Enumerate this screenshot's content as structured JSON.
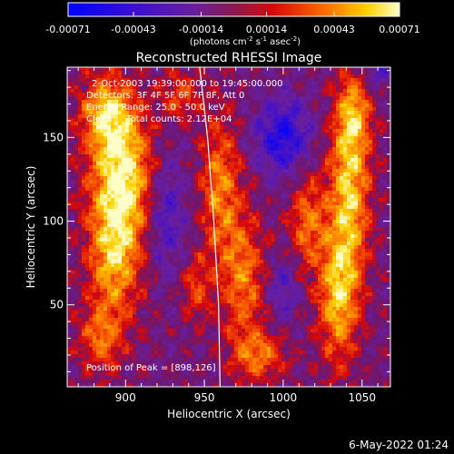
{
  "chart_data": {
    "type": "heatmap",
    "title": "Reconstructed RHESSI Image",
    "xlabel": "Heliocentric X (arcsec)",
    "ylabel": "Heliocentric Y (arcsec)",
    "xlim": [
      863,
      1068
    ],
    "ylim": [
      1,
      192
    ],
    "x_ticks": [
      900,
      950,
      1000,
      1050
    ],
    "y_ticks": [
      50,
      100,
      150
    ],
    "colorbar": {
      "range": [
        -0.00071,
        0.00071
      ],
      "tick_values": [
        -0.00071,
        -0.00043,
        -0.00014,
        0.00014,
        0.00043,
        0.00071
      ],
      "tick_labels": [
        "-0.00071",
        "-0.00043",
        "-0.00014",
        "0.00014",
        "0.00043",
        "0.00071"
      ],
      "unit_label_prefix": "(photons cm",
      "unit_label_sup1": "-2",
      "unit_label_mid": " s",
      "unit_label_sup2": "-1",
      "unit_label_mid2": " asec",
      "unit_label_sup3": "-2",
      "unit_label_suffix": ")"
    },
    "annotations": {
      "time_range": "2-Oct-2003 19:39:00.000 to 19:45:00.000",
      "detectors": "Detectors: 3F 4F 5F 6F 7F 8F, Att 0",
      "energy_range": "Energy Range: 25.0 - 50.0 keV",
      "method": "Clean     Total counts: 2.12E+04",
      "peak_position": "Position of Peak = [898,126]"
    },
    "limb_curve": [
      [
        947,
        192
      ],
      [
        952,
        150
      ],
      [
        956,
        100
      ],
      [
        959,
        50
      ],
      [
        960,
        1
      ]
    ],
    "emission_regions": [
      {
        "x": 898,
        "y": 126,
        "sx": 14,
        "sy": 26,
        "amp": 1.0
      },
      {
        "x": 888,
        "y": 165,
        "sx": 12,
        "sy": 16,
        "amp": 0.75
      },
      {
        "x": 893,
        "y": 78,
        "sx": 12,
        "sy": 24,
        "amp": 0.75
      },
      {
        "x": 885,
        "y": 30,
        "sx": 10,
        "sy": 14,
        "amp": 0.55
      },
      {
        "x": 935,
        "y": 175,
        "sx": 9,
        "sy": 10,
        "amp": 0.45
      },
      {
        "x": 960,
        "y": 120,
        "sx": 9,
        "sy": 30,
        "amp": 0.6
      },
      {
        "x": 975,
        "y": 65,
        "sx": 10,
        "sy": 28,
        "amp": 0.6
      },
      {
        "x": 1015,
        "y": 100,
        "sx": 8,
        "sy": 22,
        "amp": 0.55
      },
      {
        "x": 1042,
        "y": 120,
        "sx": 9,
        "sy": 35,
        "amp": 0.85
      },
      {
        "x": 1035,
        "y": 55,
        "sx": 9,
        "sy": 28,
        "amp": 0.8
      },
      {
        "x": 1045,
        "y": 165,
        "sx": 8,
        "sy": 16,
        "amp": 0.55
      },
      {
        "x": 985,
        "y": 20,
        "sx": 12,
        "sy": 10,
        "amp": 0.55
      },
      {
        "x": 945,
        "y": 60,
        "sx": 7,
        "sy": 14,
        "amp": 0.4
      }
    ],
    "negative_regions": [
      {
        "x": 1000,
        "y": 150,
        "sx": 12,
        "sy": 16,
        "amp": 0.7
      },
      {
        "x": 925,
        "y": 105,
        "sx": 9,
        "sy": 25,
        "amp": 0.45
      },
      {
        "x": 1000,
        "y": 60,
        "sx": 8,
        "sy": 14,
        "amp": 0.35
      },
      {
        "x": 1060,
        "y": 190,
        "sx": 8,
        "sy": 8,
        "amp": 0.35
      }
    ]
  },
  "footer": {
    "timestamp": "6-May-2022 01:24"
  }
}
